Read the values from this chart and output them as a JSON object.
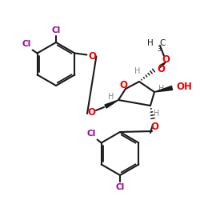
{
  "bg_color": "#ffffff",
  "bond_color": "#1a1a1a",
  "o_color": "#ee0000",
  "cl_color": "#990099",
  "h_color": "#888888",
  "figsize": [
    2.5,
    2.5
  ],
  "dpi": 100,
  "xlim": [
    0,
    250
  ],
  "ylim": [
    0,
    250
  ]
}
